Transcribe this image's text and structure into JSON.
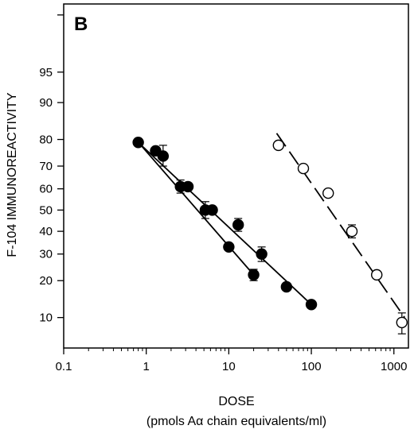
{
  "chart_data": {
    "type": "scatter",
    "panel_label": "B",
    "xlabel": "DOSE",
    "xlabel_sub": "(pmols Aα chain equivalents/ml)",
    "ylabel": "F-104 IMMUNOREACTIVITY",
    "xscale": "log",
    "yscale": "probit",
    "xlim": [
      0.1,
      1500
    ],
    "ylim": [
      5,
      99.3
    ],
    "x_ticks": [
      {
        "value": 0.1,
        "label": "0.1"
      },
      {
        "value": 1,
        "label": "1"
      },
      {
        "value": 10,
        "label": "10"
      },
      {
        "value": 100,
        "label": "100"
      },
      {
        "value": 1000,
        "label": "1000"
      }
    ],
    "y_ticks": [
      {
        "value": 10,
        "label": "10"
      },
      {
        "value": 20,
        "label": "20"
      },
      {
        "value": 30,
        "label": "30"
      },
      {
        "value": 40,
        "label": "40"
      },
      {
        "value": 50,
        "label": "50"
      },
      {
        "value": 60,
        "label": "60"
      },
      {
        "value": 70,
        "label": "70"
      },
      {
        "value": 80,
        "label": "80"
      },
      {
        "value": 90,
        "label": "90"
      },
      {
        "value": 95,
        "label": "95"
      }
    ],
    "y_minor_ticks": [
      99
    ],
    "grid": false,
    "series": [
      {
        "marker": "filled-circle",
        "points": [
          {
            "x": 0.8,
            "y": 79
          },
          {
            "x": 1.3,
            "y": 76
          },
          {
            "x": 1.6,
            "y": 74,
            "err": 4
          },
          {
            "x": 2.6,
            "y": 61,
            "err": 3
          },
          {
            "x": 3.2,
            "y": 61
          },
          {
            "x": 5.2,
            "y": 50,
            "err": 4
          },
          {
            "x": 6.3,
            "y": 50
          },
          {
            "x": 10,
            "y": 33
          },
          {
            "x": 13,
            "y": 43,
            "err": 3
          },
          {
            "x": 20,
            "y": 22,
            "err": 2
          },
          {
            "x": 25,
            "y": 30,
            "err": 3
          },
          {
            "x": 50,
            "y": 18
          },
          {
            "x": 100,
            "y": 13
          }
        ]
      },
      {
        "marker": "open-circle",
        "points": [
          {
            "x": 40,
            "y": 78
          },
          {
            "x": 80,
            "y": 69
          },
          {
            "x": 160,
            "y": 58
          },
          {
            "x": 310,
            "y": 40,
            "err": 3
          },
          {
            "x": 620,
            "y": 22
          },
          {
            "x": 1250,
            "y": 9,
            "err": 2
          }
        ]
      }
    ],
    "fit_lines": [
      {
        "style": "solid",
        "x": [
          0.75,
          20
        ],
        "y": [
          80,
          22
        ]
      },
      {
        "style": "solid",
        "x": [
          0.8,
          100
        ],
        "y": [
          79,
          13
        ]
      },
      {
        "style": "dashed",
        "x": [
          38,
          1350
        ],
        "y": [
          82,
          10
        ]
      }
    ]
  }
}
